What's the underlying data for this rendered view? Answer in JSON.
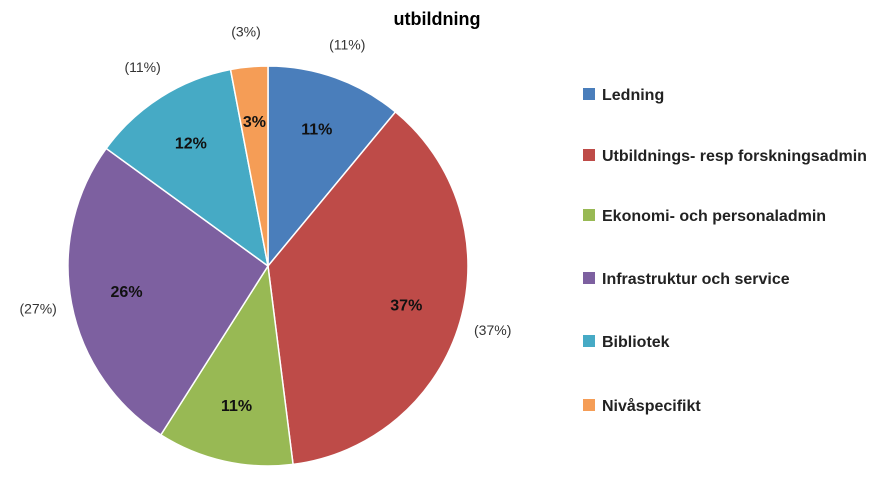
{
  "chart_data": {
    "type": "pie",
    "title": "utbildning",
    "categories": [
      "Ledning",
      "Utbildnings- resp forskningsadmin",
      "Ekonomi- och personaladmin",
      "Infrastruktur och service",
      "Bibliotek",
      "Nivåspecifikt"
    ],
    "values": [
      11,
      37,
      11,
      26,
      12,
      3
    ],
    "value_labels": [
      "11%",
      "37%",
      "11%",
      "26%",
      "12%",
      "3%"
    ],
    "annotations": [
      "(11%)",
      "(37%)",
      "(11%)",
      "(27%)",
      "(11%)",
      "(3%)"
    ],
    "colors": [
      "#4a7ebb",
      "#be4b48",
      "#98b954",
      "#7d60a0",
      "#46aac5",
      "#f59d56"
    ],
    "legend": "right"
  }
}
